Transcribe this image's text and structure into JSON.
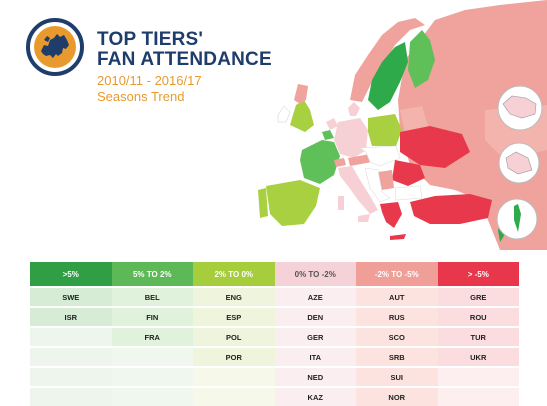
{
  "title": {
    "line1": "TOP TIERS'",
    "line2": "FAN ATTENDANCE"
  },
  "subtitle": {
    "line1": "2010/11 - 2016/17",
    "line2": "Seasons Trend"
  },
  "colors": {
    "navy": "#1f3d6b",
    "orange": "#e99a2e",
    "gt5": "#2eaa4a",
    "5to2": "#5fc05a",
    "2to0": "#a8d040",
    "0tom2": "#f7d0d6",
    "m2tom5": "#f0a29c",
    "ltm5": "#e8394c"
  },
  "legend": {
    "categories": [
      {
        "label": ">5%",
        "header_color": "#2f9e45",
        "cell_color": "#d6ecd5",
        "teams": [
          "SWE",
          "ISR"
        ]
      },
      {
        "label": "5% TO 2%",
        "header_color": "#5db957",
        "cell_color": "#e0f1dc",
        "teams": [
          "BEL",
          "FIN",
          "FRA"
        ]
      },
      {
        "label": "2% TO 0%",
        "header_color": "#a5cd3c",
        "cell_color": "#eef5dc",
        "teams": [
          "ENG",
          "ESP",
          "POL",
          "POR"
        ]
      },
      {
        "label": "0% TO -2%",
        "header_color": "#f5d2d8",
        "cell_color": "#fbeef0",
        "teams": [
          "AZE",
          "DEN",
          "GER",
          "ITA",
          "NED",
          "KAZ"
        ]
      },
      {
        "label": "-2% TO -5%",
        "header_color": "#ef9f98",
        "cell_color": "#fce3e0",
        "teams": [
          "AUT",
          "RUS",
          "SCO",
          "SRB",
          "SUI",
          "NOR"
        ]
      },
      {
        "label": "> -5%",
        "header_color": "#e8374a",
        "cell_color": "#fbdcdf",
        "teams": [
          "GRE",
          "ROU",
          "TUR",
          "UKR"
        ]
      }
    ],
    "empty_cell_colors": [
      "#edf5ec",
      "#f0f7ee",
      "#f6f9ea",
      "#fdf6f7",
      "#fdf0ee",
      "#fdeeef"
    ]
  }
}
